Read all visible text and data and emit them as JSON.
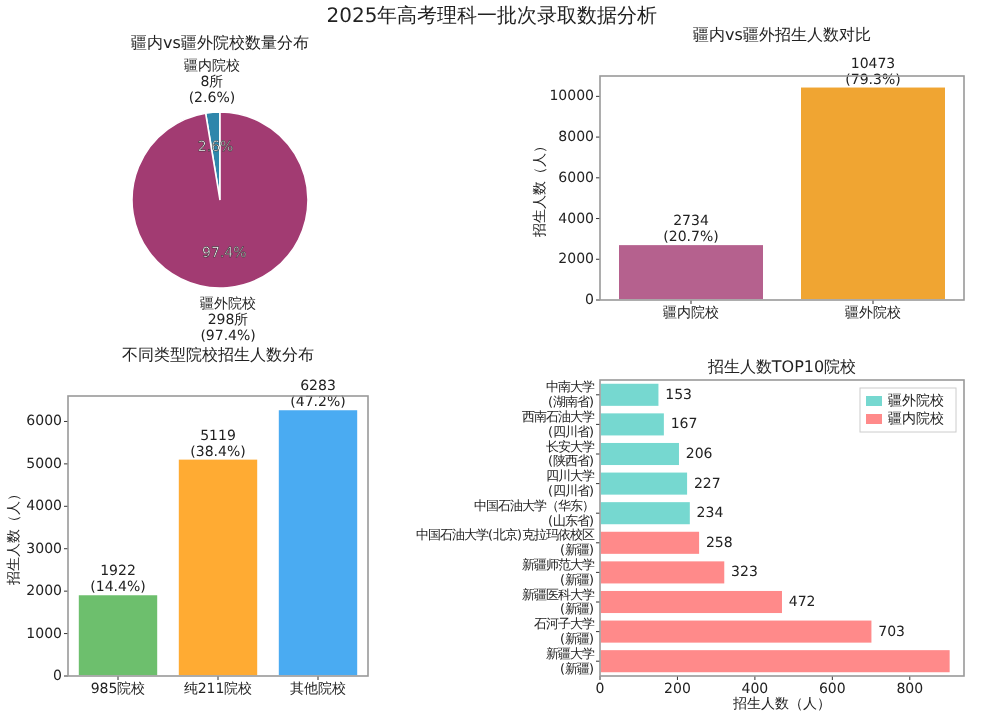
{
  "chart_data": [
    {
      "type": "other",
      "title": "2025年高考理科一批次录取数据分析"
    },
    {
      "type": "pie",
      "title": "疆内vs疆外院校数量分布",
      "categories": [
        "疆内院校",
        "疆外院校"
      ],
      "values": [
        8,
        298
      ],
      "value_labels": [
        "8所\n(2.6%)",
        "298所\n(97.4%)"
      ],
      "colors": [
        "#2e86ab",
        "#a23b72"
      ],
      "annotations": [
        "2.6%",
        "97.4%"
      ]
    },
    {
      "type": "bar",
      "title": "疆内vs疆外招生人数对比",
      "ylabel": "招生人数（人）",
      "categories": [
        "疆内院校",
        "疆外院校"
      ],
      "values": [
        2734,
        10473
      ],
      "value_labels": [
        "2734\n(20.7%)",
        "10473\n(79.3%)"
      ],
      "colors": [
        "#b5618e",
        "#f0a532"
      ],
      "ylim": [
        0,
        11000
      ],
      "yticks": [
        0,
        2000,
        4000,
        6000,
        8000,
        10000
      ]
    },
    {
      "type": "bar",
      "title": "不同类型院校招生人数分布",
      "ylabel": "招生人数（人）",
      "categories": [
        "985院校",
        "纯211院校",
        "其他院校"
      ],
      "values": [
        1922,
        5119,
        6283
      ],
      "value_labels": [
        "1922\n(14.4%)",
        "5119\n(38.4%)",
        "6283\n(47.2%)"
      ],
      "colors": [
        "#6dbf6d",
        "#ffab33",
        "#4aabf2"
      ],
      "ylim": [
        0,
        6600
      ],
      "yticks": [
        0,
        1000,
        2000,
        3000,
        4000,
        5000,
        6000
      ]
    },
    {
      "type": "bar",
      "orientation": "horizontal",
      "title": "招生人数TOP10院校",
      "xlabel": "招生人数（人）",
      "categories": [
        "中南大学\n(湖南省)",
        "西南石油大学\n(四川省)",
        "长安大学\n(陕西省)",
        "四川大学\n(四川省)",
        "中国石油大学（华东）\n(山东省)",
        "中国石油大学(北京)克拉玛依校区\n(新疆)",
        "新疆师范大学\n(新疆)",
        "新疆医科大学\n(新疆)",
        "石河子大学\n(新疆)",
        "新疆大学\n(新疆)"
      ],
      "xlim": [
        0,
        940
      ],
      "xticks": [
        0,
        200,
        400,
        600,
        800
      ],
      "legend": "top right",
      "series": [
        {
          "name": "疆外院校",
          "color": "#76d8d0",
          "values": [
            153,
            167,
            206,
            227,
            234,
            null,
            null,
            null,
            null,
            null
          ],
          "value_labels": [
            "153",
            "167",
            "206",
            "227",
            "234",
            null,
            null,
            null,
            null,
            null
          ]
        },
        {
          "name": "疆内院校",
          "color": "#ff8a8a",
          "values": [
            null,
            null,
            null,
            null,
            null,
            258,
            323,
            472,
            703,
            905
          ],
          "value_labels": [
            null,
            null,
            null,
            null,
            null,
            "258",
            "323",
            "472",
            "703",
            null
          ]
        }
      ]
    }
  ]
}
